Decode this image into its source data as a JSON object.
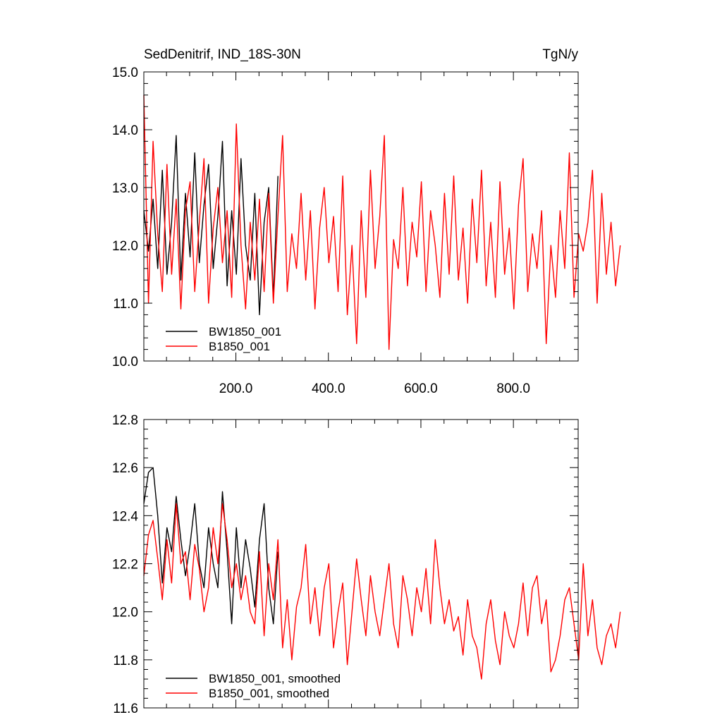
{
  "chart_data": [
    {
      "type": "line",
      "title_left": "SedDenitrif, IND_18S-30N",
      "title_right": "TgN/y",
      "xlim": [
        1,
        940
      ],
      "ylim": [
        10.0,
        15.0
      ],
      "x_ticks": [
        200,
        400,
        600,
        800
      ],
      "x_tick_labels": [
        "200.0",
        "400.0",
        "600.0",
        "800.0"
      ],
      "y_ticks": [
        10,
        11,
        12,
        13,
        14,
        15
      ],
      "y_tick_labels": [
        "10.0",
        "11.0",
        "12.0",
        "13.0",
        "14.0",
        "15.0"
      ],
      "legend_position": "lower-left",
      "series": [
        {
          "name": "BW1850_001",
          "color": "#000000",
          "x_start": 1,
          "x_step": 10,
          "values": [
            12.6,
            11.9,
            12.8,
            11.6,
            13.3,
            11.5,
            12.4,
            13.9,
            11.4,
            12.9,
            11.8,
            13.6,
            11.7,
            12.7,
            13.4,
            11.6,
            12.5,
            13.8,
            11.3,
            12.6,
            11.5,
            13.5,
            12.0,
            11.4,
            12.9,
            10.8,
            12.4,
            13.0,
            11.1,
            13.2
          ]
        },
        {
          "name": "B1850_001",
          "color": "#ff0000",
          "x_start": 1,
          "x_step": 10,
          "values": [
            14.6,
            11.0,
            13.8,
            12.2,
            11.2,
            13.4,
            11.5,
            12.8,
            10.9,
            12.6,
            13.1,
            11.2,
            12.4,
            13.5,
            11.0,
            12.3,
            13.0,
            11.7,
            12.6,
            11.1,
            14.1,
            12.0,
            10.9,
            12.4,
            11.4,
            12.8,
            11.2,
            12.9,
            11.0,
            12.5,
            13.9,
            11.2,
            12.2,
            11.6,
            12.9,
            11.4,
            12.6,
            10.9,
            12.3,
            13.0,
            11.7,
            12.5,
            11.2,
            13.2,
            10.8,
            12.0,
            10.3,
            12.6,
            11.1,
            13.3,
            11.6,
            12.5,
            13.9,
            10.2,
            12.1,
            11.6,
            13.0,
            11.3,
            12.4,
            11.8,
            13.1,
            11.2,
            12.6,
            12.0,
            11.1,
            12.9,
            11.5,
            13.2,
            11.4,
            12.3,
            11.0,
            12.8,
            11.7,
            13.3,
            11.3,
            12.4,
            11.1,
            13.1,
            11.5,
            12.3,
            10.9,
            12.7,
            13.5,
            11.2,
            12.2,
            11.6,
            12.6,
            10.3,
            12.0,
            11.1,
            12.6,
            11.6,
            13.6,
            11.1,
            12.2,
            11.9,
            12.4,
            13.3,
            11.0,
            12.9,
            11.5,
            12.4,
            11.3,
            12.0
          ]
        }
      ]
    },
    {
      "type": "line",
      "xlim": [
        1,
        940
      ],
      "ylim": [
        11.6,
        12.8
      ],
      "y_ticks": [
        11.6,
        11.8,
        12.0,
        12.2,
        12.4,
        12.6,
        12.8
      ],
      "y_tick_labels": [
        "11.6",
        "11.8",
        "12.0",
        "12.2",
        "12.4",
        "12.6",
        "12.8"
      ],
      "legend_position": "lower-left",
      "series": [
        {
          "name": "BW1850_001, smoothed",
          "color": "#000000",
          "x_start": 1,
          "x_step": 10,
          "values": [
            12.45,
            12.58,
            12.6,
            12.4,
            12.12,
            12.35,
            12.25,
            12.48,
            12.3,
            12.15,
            12.28,
            12.45,
            12.2,
            12.1,
            12.35,
            12.2,
            12.1,
            12.5,
            12.25,
            11.95,
            12.35,
            12.1,
            12.3,
            12.18,
            12.02,
            12.3,
            12.45,
            12.1,
            11.95,
            12.25
          ]
        },
        {
          "name": "B1850_001, smoothed",
          "color": "#ff0000",
          "x_start": 1,
          "x_step": 10,
          "values": [
            12.15,
            12.32,
            12.38,
            12.22,
            12.05,
            12.3,
            12.12,
            12.45,
            12.2,
            12.25,
            12.05,
            12.28,
            12.18,
            12.0,
            12.1,
            12.35,
            12.2,
            12.45,
            12.3,
            12.1,
            12.2,
            12.05,
            12.15,
            12.0,
            11.95,
            12.25,
            11.9,
            12.2,
            12.05,
            12.3,
            11.85,
            12.05,
            11.8,
            12.02,
            12.1,
            12.28,
            11.95,
            12.1,
            11.9,
            12.1,
            12.2,
            11.85,
            12.0,
            12.12,
            11.78,
            12.0,
            12.22,
            12.05,
            11.9,
            12.15,
            12.0,
            11.9,
            12.05,
            12.2,
            11.95,
            11.85,
            12.15,
            12.05,
            11.9,
            12.1,
            12.0,
            12.18,
            11.95,
            12.3,
            12.1,
            11.95,
            12.05,
            11.92,
            11.98,
            11.82,
            12.05,
            11.9,
            11.85,
            11.72,
            11.95,
            12.05,
            11.88,
            11.78,
            12.0,
            11.9,
            11.85,
            11.95,
            12.12,
            11.9,
            12.1,
            12.15,
            11.95,
            12.05,
            11.75,
            11.8,
            11.9,
            12.05,
            12.1,
            11.95,
            11.8,
            12.2,
            11.9,
            12.05,
            11.85,
            11.78,
            11.9,
            11.95,
            11.85,
            12.0
          ]
        }
      ]
    }
  ]
}
